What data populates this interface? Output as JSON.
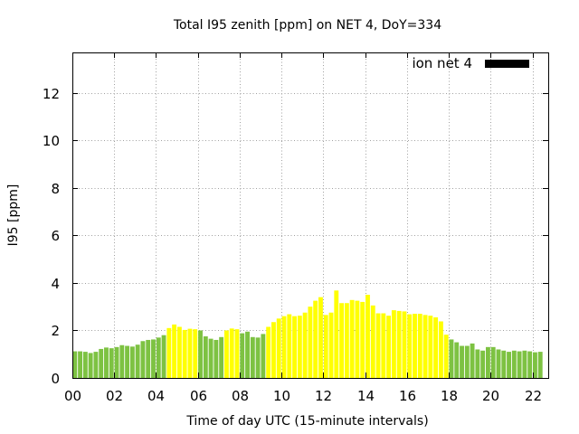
{
  "chart_data": {
    "type": "bar",
    "title": "Total I95 zenith [ppm] on NET 4, DoY=334",
    "xlabel": "Time of day UTC (15-minute intervals)",
    "ylabel": "I95 [ppm]",
    "x_tick_labels": [
      "00",
      "02",
      "04",
      "06",
      "08",
      "10",
      "12",
      "14",
      "16",
      "18",
      "20",
      "22"
    ],
    "x_ticks_hours": [
      0,
      2,
      4,
      6,
      8,
      10,
      12,
      14,
      16,
      18,
      20,
      22
    ],
    "xlim_hours": [
      0,
      22.75
    ],
    "ylim": [
      0,
      13.7
    ],
    "y_ticks": [
      0,
      2,
      4,
      6,
      8,
      10,
      12
    ],
    "grid": true,
    "legend": {
      "label": "ion net 4",
      "position": "top-right",
      "color": "#000000"
    },
    "colors": {
      "green": "#7dc242",
      "yellow": "#ffff00"
    },
    "interval_minutes": 15,
    "series": [
      {
        "name": "ion net 4",
        "values": [
          1.12,
          1.12,
          1.1,
          1.05,
          1.1,
          1.22,
          1.28,
          1.25,
          1.3,
          1.38,
          1.35,
          1.32,
          1.4,
          1.55,
          1.6,
          1.62,
          1.7,
          1.8,
          2.1,
          2.25,
          2.15,
          2.02,
          2.07,
          2.05,
          2.0,
          1.75,
          1.65,
          1.6,
          1.72,
          2.0,
          2.08,
          2.05,
          1.88,
          1.95,
          1.72,
          1.7,
          1.85,
          2.15,
          2.35,
          2.5,
          2.6,
          2.68,
          2.6,
          2.62,
          2.75,
          3.0,
          3.25,
          3.4,
          2.65,
          2.75,
          3.68,
          3.15,
          3.15,
          3.28,
          3.25,
          3.2,
          3.5,
          3.05,
          2.72,
          2.72,
          2.62,
          2.85,
          2.82,
          2.8,
          2.68,
          2.7,
          2.7,
          2.65,
          2.62,
          2.55,
          2.38,
          1.82,
          1.62,
          1.5,
          1.35,
          1.35,
          1.45,
          1.2,
          1.15,
          1.3,
          1.3,
          1.2,
          1.15,
          1.1,
          1.15,
          1.12,
          1.15,
          1.12,
          1.08,
          1.1
        ],
        "colors": [
          "green",
          "green",
          "green",
          "green",
          "green",
          "green",
          "green",
          "green",
          "green",
          "green",
          "green",
          "green",
          "green",
          "green",
          "green",
          "green",
          "green",
          "green",
          "yellow",
          "yellow",
          "yellow",
          "yellow",
          "yellow",
          "yellow",
          "green",
          "green",
          "green",
          "green",
          "green",
          "yellow",
          "yellow",
          "yellow",
          "green",
          "green",
          "green",
          "green",
          "green",
          "yellow",
          "yellow",
          "yellow",
          "yellow",
          "yellow",
          "yellow",
          "yellow",
          "yellow",
          "yellow",
          "yellow",
          "yellow",
          "yellow",
          "yellow",
          "yellow",
          "yellow",
          "yellow",
          "yellow",
          "yellow",
          "yellow",
          "yellow",
          "yellow",
          "yellow",
          "yellow",
          "yellow",
          "yellow",
          "yellow",
          "yellow",
          "yellow",
          "yellow",
          "yellow",
          "yellow",
          "yellow",
          "yellow",
          "yellow",
          "yellow",
          "green",
          "green",
          "green",
          "green",
          "green",
          "green",
          "green",
          "green",
          "green",
          "green",
          "green",
          "green",
          "green",
          "green",
          "green",
          "green",
          "green",
          "green",
          "green"
        ]
      }
    ]
  }
}
